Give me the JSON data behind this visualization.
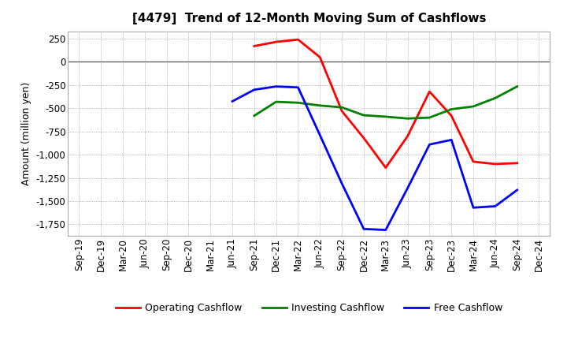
{
  "title": "[4479]  Trend of 12-Month Moving Sum of Cashflows",
  "ylabel": "Amount (million yen)",
  "background_color": "#ffffff",
  "plot_bg_color": "#ffffff",
  "grid_color": "#999999",
  "ylim": [
    -1875,
    330
  ],
  "yticks": [
    250,
    0,
    -250,
    -500,
    -750,
    -1000,
    -1250,
    -1500,
    -1750
  ],
  "x_labels": [
    "Sep-19",
    "Dec-19",
    "Mar-20",
    "Jun-20",
    "Sep-20",
    "Dec-20",
    "Mar-21",
    "Jun-21",
    "Sep-21",
    "Dec-21",
    "Mar-22",
    "Jun-22",
    "Sep-22",
    "Dec-22",
    "Mar-23",
    "Jun-23",
    "Sep-23",
    "Dec-23",
    "Mar-24",
    "Jun-24",
    "Sep-24",
    "Dec-24"
  ],
  "operating": [
    null,
    null,
    null,
    null,
    null,
    null,
    null,
    null,
    170,
    215,
    240,
    50,
    -530,
    -820,
    -1140,
    -800,
    -320,
    -580,
    -1075,
    -1100,
    -1090,
    null
  ],
  "investing": [
    null,
    null,
    null,
    null,
    null,
    null,
    null,
    null,
    -580,
    -430,
    -440,
    -470,
    -490,
    -575,
    -590,
    -610,
    -600,
    -510,
    -480,
    -390,
    -265,
    null
  ],
  "free": [
    null,
    null,
    null,
    null,
    null,
    null,
    null,
    -425,
    -300,
    -265,
    -275,
    -790,
    -1310,
    -1800,
    -1810,
    -1360,
    -890,
    -840,
    -1570,
    -1555,
    -1380,
    null
  ],
  "line_width": 2.0,
  "operating_color": "#ff0000",
  "investing_color": "#008000",
  "free_color": "#0000ff",
  "title_fontsize": 11,
  "label_fontsize": 9,
  "tick_fontsize": 8.5
}
